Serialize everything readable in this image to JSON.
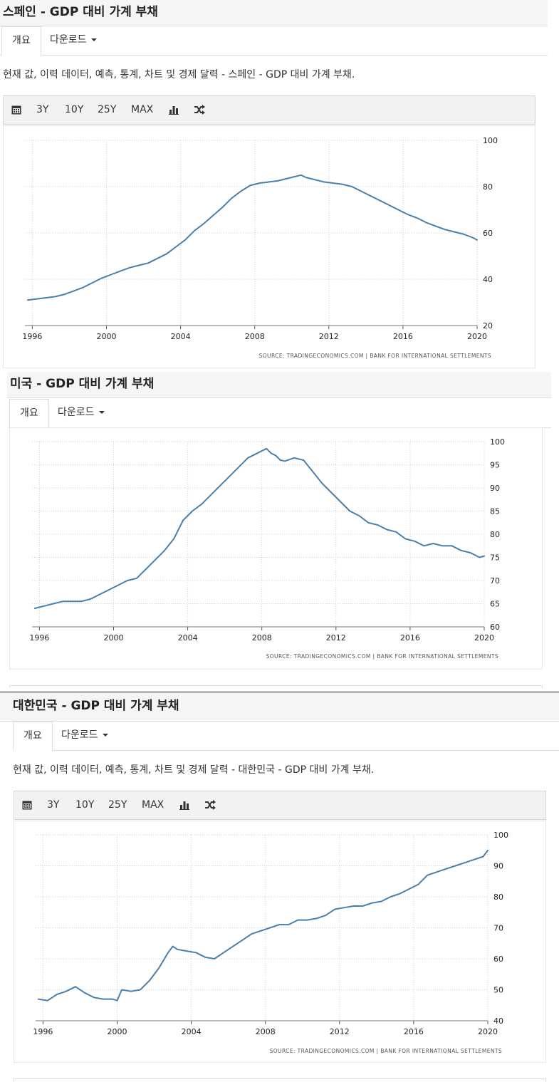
{
  "common": {
    "tab_overview": "개요",
    "tab_download": "다운로드",
    "toolbar": [
      "3Y",
      "10Y",
      "25Y",
      "MAX"
    ],
    "toolbar_icons": [
      "calendar-icon",
      "bar-chart-icon",
      "shuffle-icon"
    ],
    "source": "SOURCE: TRADINGECONOMICS.COM  |  BANK FOR INTERNATIONAL SETTLEMENTS",
    "line_color": "#4a7fab"
  },
  "sections": [
    {
      "title": "스페인 - GDP 대비 가계 부채",
      "desc": "현재 값, 이력 데이터, 예측, 통계, 차트 및 경제 달력 - 스페인 - GDP 대비 가계 부채."
    },
    {
      "title": "미국 - GDP 대비 가계 부채"
    },
    {
      "title": "대한민국 - GDP 대비 가계 부채",
      "desc": "현재 값, 이력 데이터, 예측, 통계, 차트 및 경제 달력 - 대한민국 - GDP 대비 가계 부채."
    }
  ],
  "chart_data": [
    {
      "type": "line",
      "title": "스페인 - GDP 대비 가계 부채",
      "x_ticks": [
        "1996",
        "2000",
        "2004",
        "2008",
        "2012",
        "2016",
        "2020"
      ],
      "y_ticks": [
        "20",
        "40",
        "60",
        "80",
        "100"
      ],
      "xlim": [
        1995.6,
        2020.0
      ],
      "ylim": [
        20,
        100
      ],
      "grid": true,
      "series": [
        {
          "x": [
            1995.75,
            1996.25,
            1996.75,
            1997.25,
            1997.75,
            1998.25,
            1998.75,
            1999.25,
            1999.75,
            2000.25,
            2000.75,
            2001.25,
            2001.75,
            2002.25,
            2002.75,
            2003.25,
            2003.75,
            2004.25,
            2004.75,
            2005.25,
            2005.75,
            2006.25,
            2006.75,
            2007.25,
            2007.75,
            2008.25,
            2008.75,
            2009.25,
            2009.75,
            2010.25,
            2010.5,
            2010.75,
            2011.25,
            2011.75,
            2012.25,
            2012.75,
            2013.25,
            2013.75,
            2014.25,
            2014.75,
            2015.25,
            2015.75,
            2016.25,
            2016.75,
            2017.25,
            2017.75,
            2018.25,
            2018.75,
            2019.25,
            2019.75,
            2020.0
          ],
          "y": [
            31,
            31.5,
            32,
            32.5,
            33.5,
            35,
            36.5,
            38.5,
            40.5,
            42,
            43.5,
            45,
            46,
            47,
            49,
            51,
            54,
            57,
            61,
            64,
            67.5,
            71,
            75,
            78,
            80.5,
            81.5,
            82,
            82.5,
            83.5,
            84.5,
            85,
            84,
            83,
            82,
            81.5,
            81,
            80,
            78,
            76,
            74,
            72,
            70,
            68,
            66.5,
            64.5,
            63,
            61.5,
            60.5,
            59.5,
            58,
            57
          ]
        }
      ]
    },
    {
      "type": "line",
      "title": "미국 - GDP 대비 가계 부채",
      "x_ticks": [
        "1996",
        "2000",
        "2004",
        "2008",
        "2012",
        "2016",
        "2020"
      ],
      "y_ticks": [
        "60",
        "65",
        "70",
        "75",
        "80",
        "85",
        "90",
        "95",
        "100"
      ],
      "xlim": [
        1995.6,
        2020.0
      ],
      "ylim": [
        60,
        100
      ],
      "grid": true,
      "series": [
        {
          "x": [
            1995.75,
            1996.25,
            1996.75,
            1997.25,
            1997.75,
            1998.25,
            1998.75,
            1999.25,
            1999.75,
            2000.25,
            2000.75,
            2001.25,
            2001.75,
            2002.25,
            2002.75,
            2003.25,
            2003.75,
            2004.25,
            2004.75,
            2005.25,
            2005.75,
            2006.25,
            2006.75,
            2007.25,
            2007.75,
            2008.0,
            2008.25,
            2008.5,
            2008.75,
            2009.0,
            2009.25,
            2009.75,
            2010.25,
            2010.75,
            2011.25,
            2011.75,
            2012.25,
            2012.75,
            2013.25,
            2013.75,
            2014.25,
            2014.75,
            2015.25,
            2015.75,
            2016.25,
            2016.75,
            2017.25,
            2017.75,
            2018.25,
            2018.75,
            2019.25,
            2019.75,
            2020.0
          ],
          "y": [
            64,
            64.5,
            65,
            65.5,
            65.5,
            65.5,
            66,
            67,
            68,
            69,
            70,
            70.5,
            72.5,
            74.5,
            76.5,
            79,
            83,
            85,
            86.5,
            88.5,
            90.5,
            92.5,
            94.5,
            96.5,
            97.5,
            98,
            98.5,
            97.5,
            97,
            96,
            95.8,
            96.5,
            96,
            93.5,
            91,
            89,
            87,
            85,
            84,
            82.5,
            82,
            81,
            80.5,
            79,
            78.5,
            77.5,
            78,
            77.5,
            77.5,
            76.5,
            76,
            75,
            75.3
          ]
        }
      ]
    },
    {
      "type": "line",
      "title": "대한민국 - GDP 대비 가계 부채",
      "x_ticks": [
        "1996",
        "2000",
        "2004",
        "2008",
        "2012",
        "2016",
        "2020"
      ],
      "y_ticks": [
        "40",
        "50",
        "60",
        "70",
        "80",
        "90",
        "100"
      ],
      "xlim": [
        1995.6,
        2020.0
      ],
      "ylim": [
        40,
        100
      ],
      "grid": true,
      "series": [
        {
          "x": [
            1995.75,
            1996.25,
            1996.75,
            1997.25,
            1997.75,
            1998.25,
            1998.75,
            1999.25,
            1999.75,
            2000.0,
            2000.25,
            2000.75,
            2001.25,
            2001.75,
            2002.25,
            2002.75,
            2003.0,
            2003.25,
            2003.75,
            2004.25,
            2004.75,
            2005.25,
            2005.75,
            2006.25,
            2006.75,
            2007.25,
            2007.75,
            2008.25,
            2008.75,
            2009.25,
            2009.75,
            2010.25,
            2010.75,
            2011.25,
            2011.75,
            2012.25,
            2012.75,
            2013.25,
            2013.75,
            2014.25,
            2014.75,
            2015.25,
            2015.75,
            2016.25,
            2016.75,
            2017.25,
            2017.75,
            2018.25,
            2018.75,
            2019.25,
            2019.75,
            2020.0
          ],
          "y": [
            47,
            46.5,
            48.5,
            49.5,
            51,
            49,
            47.5,
            47,
            47,
            46.5,
            50,
            49.5,
            50,
            53,
            57,
            62,
            64,
            63,
            62.5,
            62,
            60.5,
            60,
            62,
            64,
            66,
            68,
            69,
            70,
            71,
            71,
            72.5,
            72.5,
            73,
            74,
            76,
            76.5,
            77,
            77,
            78,
            78.5,
            80,
            81,
            82.5,
            84,
            87,
            88,
            89,
            90,
            91,
            92,
            93,
            95
          ]
        }
      ]
    }
  ]
}
